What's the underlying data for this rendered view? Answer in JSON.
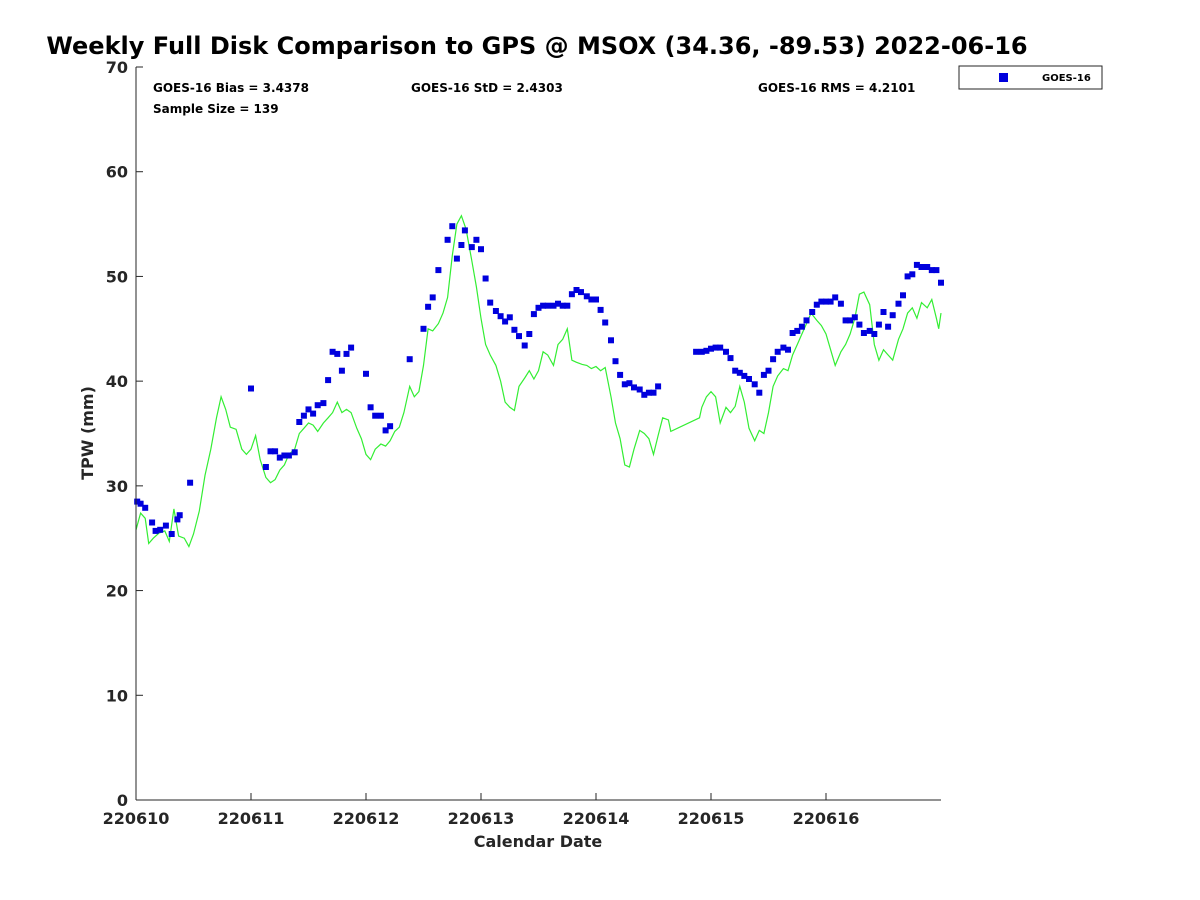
{
  "chart_data": {
    "type": "scatter",
    "title": "Weekly Full Disk Comparison to GPS @ MSOX (34.36, -89.53) 2022-06-16",
    "xlabel": "Calendar Date",
    "ylabel": "TPW (mm)",
    "xlim": [
      0,
      7
    ],
    "ylim": [
      0,
      70
    ],
    "x_ticks": [
      0,
      1,
      2,
      3,
      4,
      5,
      6
    ],
    "x_tick_labels": [
      "220610",
      "220611",
      "220612",
      "220613",
      "220614",
      "220615",
      "220616"
    ],
    "y_ticks": [
      0,
      10,
      20,
      30,
      40,
      50,
      60,
      70
    ],
    "grid": false,
    "legend_position": "top-right",
    "annotations": {
      "bias": "GOES-16 Bias = 3.4378",
      "std": "GOES-16 StD = 2.4303",
      "rms": "GOES-16 RMS = 4.2101",
      "sample": "Sample Size = 139"
    },
    "series": [
      {
        "name": "GOES-16",
        "style": "square-marker",
        "color": "#0000dd",
        "points": [
          [
            0.01,
            28.5
          ],
          [
            0.04,
            28.3
          ],
          [
            0.08,
            27.9
          ],
          [
            0.14,
            26.5
          ],
          [
            0.17,
            25.7
          ],
          [
            0.21,
            25.8
          ],
          [
            0.26,
            26.2
          ],
          [
            0.31,
            25.4
          ],
          [
            0.36,
            26.8
          ],
          [
            0.38,
            27.2
          ],
          [
            0.47,
            30.3
          ],
          [
            1.0,
            39.3
          ],
          [
            1.13,
            31.8
          ],
          [
            1.17,
            33.3
          ],
          [
            1.21,
            33.3
          ],
          [
            1.25,
            32.7
          ],
          [
            1.29,
            32.9
          ],
          [
            1.33,
            32.9
          ],
          [
            1.38,
            33.2
          ],
          [
            1.42,
            36.1
          ],
          [
            1.46,
            36.7
          ],
          [
            1.5,
            37.3
          ],
          [
            1.54,
            36.9
          ],
          [
            1.58,
            37.7
          ],
          [
            1.63,
            37.9
          ],
          [
            1.67,
            40.1
          ],
          [
            1.71,
            42.8
          ],
          [
            1.75,
            42.6
          ],
          [
            1.79,
            41.0
          ],
          [
            1.83,
            42.6
          ],
          [
            1.87,
            43.2
          ],
          [
            2.0,
            40.7
          ],
          [
            2.04,
            37.5
          ],
          [
            2.08,
            36.7
          ],
          [
            2.13,
            36.7
          ],
          [
            2.17,
            35.3
          ],
          [
            2.21,
            35.7
          ],
          [
            2.38,
            42.1
          ],
          [
            2.5,
            45.0
          ],
          [
            2.54,
            47.1
          ],
          [
            2.58,
            48.0
          ],
          [
            2.63,
            50.6
          ],
          [
            2.71,
            53.5
          ],
          [
            2.75,
            54.8
          ],
          [
            2.79,
            51.7
          ],
          [
            2.83,
            53.0
          ],
          [
            2.86,
            54.4
          ],
          [
            2.92,
            52.8
          ],
          [
            2.96,
            53.5
          ],
          [
            3.0,
            52.6
          ],
          [
            3.04,
            49.8
          ],
          [
            3.08,
            47.5
          ],
          [
            3.13,
            46.7
          ],
          [
            3.17,
            46.2
          ],
          [
            3.21,
            45.7
          ],
          [
            3.25,
            46.1
          ],
          [
            3.29,
            44.9
          ],
          [
            3.33,
            44.3
          ],
          [
            3.38,
            43.4
          ],
          [
            3.42,
            44.5
          ],
          [
            3.46,
            46.4
          ],
          [
            3.5,
            47.0
          ],
          [
            3.54,
            47.2
          ],
          [
            3.58,
            47.2
          ],
          [
            3.63,
            47.2
          ],
          [
            3.67,
            47.4
          ],
          [
            3.71,
            47.2
          ],
          [
            3.75,
            47.2
          ],
          [
            3.79,
            48.3
          ],
          [
            3.83,
            48.7
          ],
          [
            3.87,
            48.5
          ],
          [
            3.92,
            48.1
          ],
          [
            3.96,
            47.8
          ],
          [
            4.0,
            47.8
          ],
          [
            4.04,
            46.8
          ],
          [
            4.08,
            45.6
          ],
          [
            4.13,
            43.9
          ],
          [
            4.17,
            41.9
          ],
          [
            4.21,
            40.6
          ],
          [
            4.25,
            39.7
          ],
          [
            4.29,
            39.8
          ],
          [
            4.33,
            39.4
          ],
          [
            4.38,
            39.2
          ],
          [
            4.42,
            38.7
          ],
          [
            4.46,
            38.9
          ],
          [
            4.5,
            38.9
          ],
          [
            4.54,
            39.5
          ],
          [
            4.87,
            42.8
          ],
          [
            4.92,
            42.8
          ],
          [
            4.96,
            42.9
          ],
          [
            5.0,
            43.1
          ],
          [
            5.04,
            43.2
          ],
          [
            5.08,
            43.2
          ],
          [
            5.13,
            42.8
          ],
          [
            5.17,
            42.2
          ],
          [
            5.21,
            41.0
          ],
          [
            5.25,
            40.8
          ],
          [
            5.29,
            40.5
          ],
          [
            5.33,
            40.2
          ],
          [
            5.38,
            39.7
          ],
          [
            5.42,
            38.9
          ],
          [
            5.46,
            40.6
          ],
          [
            5.5,
            41.0
          ],
          [
            5.54,
            42.1
          ],
          [
            5.58,
            42.8
          ],
          [
            5.63,
            43.2
          ],
          [
            5.67,
            43.0
          ],
          [
            5.71,
            44.6
          ],
          [
            5.75,
            44.8
          ],
          [
            5.79,
            45.2
          ],
          [
            5.83,
            45.8
          ],
          [
            5.88,
            46.6
          ],
          [
            5.92,
            47.3
          ],
          [
            5.96,
            47.6
          ],
          [
            6.0,
            47.6
          ],
          [
            6.04,
            47.6
          ],
          [
            6.08,
            48.0
          ],
          [
            6.13,
            47.4
          ],
          [
            6.17,
            45.8
          ],
          [
            6.21,
            45.8
          ],
          [
            6.25,
            46.1
          ],
          [
            6.29,
            45.4
          ],
          [
            6.33,
            44.6
          ],
          [
            6.38,
            44.8
          ],
          [
            6.42,
            44.5
          ],
          [
            6.46,
            45.4
          ],
          [
            6.5,
            46.6
          ],
          [
            6.54,
            45.2
          ],
          [
            6.58,
            46.3
          ],
          [
            6.63,
            47.4
          ],
          [
            6.67,
            48.2
          ],
          [
            6.71,
            50.0
          ],
          [
            6.75,
            50.2
          ],
          [
            6.79,
            51.1
          ],
          [
            6.83,
            50.9
          ],
          [
            6.88,
            50.9
          ],
          [
            6.92,
            50.6
          ],
          [
            6.96,
            50.6
          ],
          [
            7.0,
            49.4
          ]
        ]
      },
      {
        "name": "",
        "style": "line",
        "color": "#33ee33",
        "points": [
          [
            0.0,
            25.8
          ],
          [
            0.04,
            27.4
          ],
          [
            0.08,
            26.9
          ],
          [
            0.11,
            24.5
          ],
          [
            0.15,
            25.0
          ],
          [
            0.2,
            25.5
          ],
          [
            0.25,
            25.7
          ],
          [
            0.29,
            24.7
          ],
          [
            0.33,
            27.8
          ],
          [
            0.37,
            25.2
          ],
          [
            0.42,
            25.0
          ],
          [
            0.46,
            24.2
          ],
          [
            0.5,
            25.4
          ],
          [
            0.55,
            27.6
          ],
          [
            0.6,
            31.0
          ],
          [
            0.65,
            33.5
          ],
          [
            0.7,
            36.5
          ],
          [
            0.74,
            38.5
          ],
          [
            0.78,
            37.3
          ],
          [
            0.82,
            35.6
          ],
          [
            0.87,
            35.4
          ],
          [
            0.92,
            33.5
          ],
          [
            0.96,
            33.0
          ],
          [
            1.0,
            33.5
          ],
          [
            1.04,
            34.8
          ],
          [
            1.08,
            32.5
          ],
          [
            1.13,
            30.8
          ],
          [
            1.17,
            30.3
          ],
          [
            1.21,
            30.6
          ],
          [
            1.25,
            31.5
          ],
          [
            1.29,
            32.0
          ],
          [
            1.33,
            33.0
          ],
          [
            1.38,
            33.5
          ],
          [
            1.42,
            35.0
          ],
          [
            1.46,
            35.5
          ],
          [
            1.5,
            36.0
          ],
          [
            1.54,
            35.8
          ],
          [
            1.58,
            35.2
          ],
          [
            1.63,
            36.0
          ],
          [
            1.67,
            36.5
          ],
          [
            1.71,
            37.0
          ],
          [
            1.75,
            38.0
          ],
          [
            1.79,
            37.0
          ],
          [
            1.83,
            37.3
          ],
          [
            1.87,
            37.0
          ],
          [
            1.92,
            35.5
          ],
          [
            1.96,
            34.5
          ],
          [
            2.0,
            33.0
          ],
          [
            2.04,
            32.5
          ],
          [
            2.08,
            33.5
          ],
          [
            2.13,
            34.0
          ],
          [
            2.17,
            33.8
          ],
          [
            2.21,
            34.3
          ],
          [
            2.25,
            35.2
          ],
          [
            2.29,
            35.6
          ],
          [
            2.33,
            37.0
          ],
          [
            2.38,
            39.5
          ],
          [
            2.42,
            38.5
          ],
          [
            2.46,
            39.0
          ],
          [
            2.5,
            41.5
          ],
          [
            2.54,
            45.0
          ],
          [
            2.58,
            44.8
          ],
          [
            2.63,
            45.5
          ],
          [
            2.67,
            46.5
          ],
          [
            2.71,
            48.0
          ],
          [
            2.75,
            52.0
          ],
          [
            2.79,
            55.0
          ],
          [
            2.83,
            55.8
          ],
          [
            2.87,
            54.5
          ],
          [
            2.92,
            51.5
          ],
          [
            2.96,
            49.0
          ],
          [
            3.0,
            46.0
          ],
          [
            3.04,
            43.5
          ],
          [
            3.08,
            42.5
          ],
          [
            3.13,
            41.5
          ],
          [
            3.17,
            40.0
          ],
          [
            3.21,
            38.0
          ],
          [
            3.25,
            37.5
          ],
          [
            3.29,
            37.2
          ],
          [
            3.33,
            39.5
          ],
          [
            3.38,
            40.3
          ],
          [
            3.42,
            41.0
          ],
          [
            3.46,
            40.2
          ],
          [
            3.5,
            41.0
          ],
          [
            3.54,
            42.8
          ],
          [
            3.58,
            42.5
          ],
          [
            3.63,
            41.5
          ],
          [
            3.67,
            43.5
          ],
          [
            3.71,
            44.0
          ],
          [
            3.75,
            45.0
          ],
          [
            3.79,
            42.0
          ],
          [
            3.83,
            41.8
          ],
          [
            3.88,
            41.6
          ],
          [
            3.92,
            41.5
          ],
          [
            3.96,
            41.2
          ],
          [
            4.0,
            41.4
          ],
          [
            4.04,
            41.0
          ],
          [
            4.08,
            41.3
          ],
          [
            4.13,
            38.5
          ],
          [
            4.17,
            36.0
          ],
          [
            4.21,
            34.5
          ],
          [
            4.25,
            32.0
          ],
          [
            4.29,
            31.8
          ],
          [
            4.33,
            33.5
          ],
          [
            4.38,
            35.3
          ],
          [
            4.42,
            35.0
          ],
          [
            4.46,
            34.5
          ],
          [
            4.5,
            33.0
          ],
          [
            4.54,
            34.8
          ],
          [
            4.58,
            36.5
          ],
          [
            4.63,
            36.3
          ],
          [
            4.65,
            35.2
          ],
          [
            4.9,
            36.5
          ],
          [
            4.92,
            37.5
          ],
          [
            4.96,
            38.5
          ],
          [
            5.0,
            39.0
          ],
          [
            5.04,
            38.5
          ],
          [
            5.08,
            36.0
          ],
          [
            5.13,
            37.5
          ],
          [
            5.17,
            37.0
          ],
          [
            5.21,
            37.6
          ],
          [
            5.25,
            39.5
          ],
          [
            5.29,
            38.0
          ],
          [
            5.33,
            35.5
          ],
          [
            5.38,
            34.3
          ],
          [
            5.42,
            35.3
          ],
          [
            5.46,
            35.0
          ],
          [
            5.5,
            37.0
          ],
          [
            5.54,
            39.5
          ],
          [
            5.58,
            40.5
          ],
          [
            5.63,
            41.2
          ],
          [
            5.67,
            41.0
          ],
          [
            5.71,
            42.5
          ],
          [
            5.75,
            43.5
          ],
          [
            5.79,
            44.5
          ],
          [
            5.83,
            45.5
          ],
          [
            5.87,
            46.5
          ],
          [
            5.92,
            45.8
          ],
          [
            5.96,
            45.3
          ],
          [
            6.0,
            44.5
          ],
          [
            6.04,
            43.0
          ],
          [
            6.08,
            41.5
          ],
          [
            6.13,
            42.8
          ],
          [
            6.17,
            43.5
          ],
          [
            6.21,
            44.5
          ],
          [
            6.25,
            46.0
          ],
          [
            6.29,
            48.3
          ],
          [
            6.33,
            48.5
          ],
          [
            6.38,
            47.3
          ],
          [
            6.42,
            43.5
          ],
          [
            6.46,
            42.0
          ],
          [
            6.5,
            43.0
          ],
          [
            6.54,
            42.5
          ],
          [
            6.58,
            42.0
          ],
          [
            6.63,
            44.0
          ],
          [
            6.67,
            45.0
          ],
          [
            6.71,
            46.5
          ],
          [
            6.75,
            47.0
          ],
          [
            6.79,
            46.0
          ],
          [
            6.83,
            47.5
          ],
          [
            6.88,
            47.0
          ],
          [
            6.92,
            47.8
          ],
          [
            6.96,
            46.0
          ],
          [
            6.98,
            45.0
          ],
          [
            7.0,
            46.5
          ]
        ]
      }
    ]
  }
}
